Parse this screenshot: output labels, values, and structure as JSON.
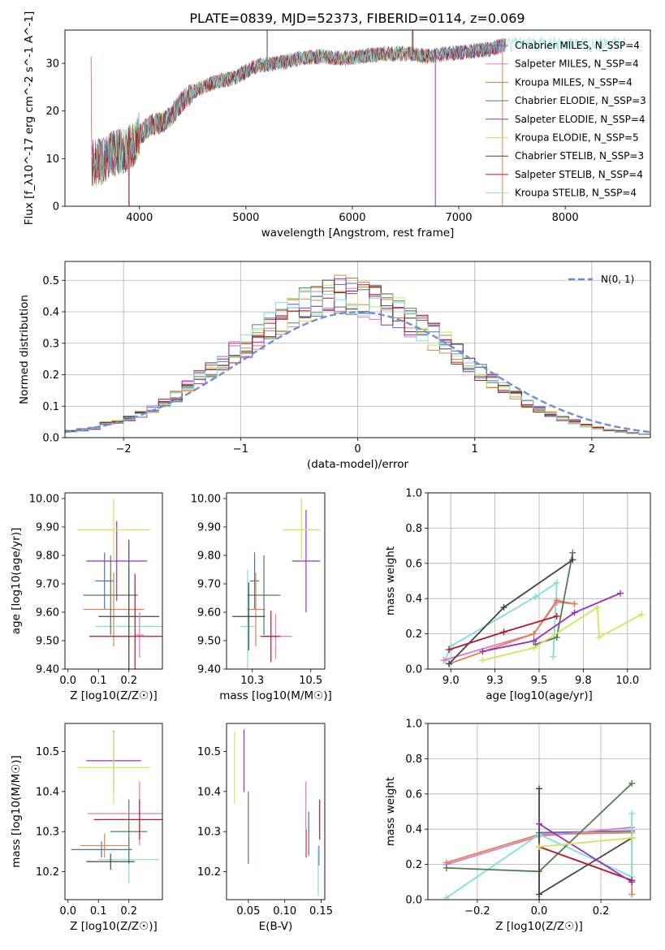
{
  "figure_title": "PLATE=0839, MJD=52373, FIBERID=0114, z=0.069",
  "colors": [
    "#4c72b0",
    "#dd8452",
    "#e377c2",
    "#c87f2e",
    "#4f7f4f",
    "#9b30b8",
    "#d6e35a",
    "#444444",
    "#b2182b",
    "#7fdfe0",
    "#6a8fd8"
  ],
  "chart_data": [
    {
      "id": "spectrum",
      "type": "line",
      "xlabel": "wavelength [Angstrom, rest frame]",
      "ylabel": "Flux [f_λ10^-17 erg cm^-2 s^-1 A^-1]",
      "xlim": [
        3300,
        8800
      ],
      "ylim": [
        0,
        37
      ],
      "xticks": [
        4000,
        5000,
        6000,
        7000,
        8000
      ],
      "yticks": [
        0,
        10,
        20,
        30
      ],
      "grid": false,
      "legend_position": "right",
      "series": [
        {
          "name": "Chabrier MILES, N_SSP=4"
        },
        {
          "name": "Salpeter MILES, N_SSP=4"
        },
        {
          "name": "Kroupa MILES, N_SSP=4"
        },
        {
          "name": "Chabrier ELODIE, N_SSP=3"
        },
        {
          "name": "Salpeter ELODIE, N_SSP=4"
        },
        {
          "name": "Kroupa ELODIE, N_SSP=5"
        },
        {
          "name": "Chabrier STELIB, N_SSP=3"
        },
        {
          "name": "Salpeter STELIB, N_SSP=4"
        },
        {
          "name": "Kroupa STELIB, N_SSP=4"
        }
      ],
      "continuum": {
        "x": [
          3550,
          3650,
          3750,
          3900,
          4000,
          4100,
          4200,
          4300,
          4400,
          4500,
          4700,
          4900,
          5100,
          5300,
          5500,
          5700,
          5900,
          6100,
          6300,
          6500,
          6700,
          6900,
          7100,
          7300,
          7450
        ],
        "y": [
          9,
          9.5,
          11,
          12,
          15,
          17,
          17.5,
          19,
          22,
          24,
          26,
          27,
          29.5,
          30,
          31,
          31.5,
          31,
          31.5,
          32,
          32,
          31.5,
          32,
          32.5,
          33,
          34
        ]
      }
    },
    {
      "id": "residuals",
      "type": "bar",
      "xlabel": "(data-model)/error",
      "ylabel": "Normed distribution",
      "xlim": [
        -2.5,
        2.5
      ],
      "ylim": [
        0,
        0.56
      ],
      "xticks": [
        -2,
        -1,
        0,
        1,
        2
      ],
      "yticks": [
        0.0,
        0.1,
        0.2,
        0.3,
        0.4,
        0.5
      ],
      "grid": true,
      "legend_position": "top-right",
      "legend": "N(0, 1)",
      "bin_width": 0.1,
      "bin_centers": [
        -2.45,
        -2.35,
        -2.25,
        -2.15,
        -2.05,
        -1.95,
        -1.85,
        -1.75,
        -1.65,
        -1.55,
        -1.45,
        -1.35,
        -1.25,
        -1.15,
        -1.05,
        -0.95,
        -0.85,
        -0.75,
        -0.65,
        -0.55,
        -0.45,
        -0.35,
        -0.25,
        -0.15,
        -0.05,
        0.05,
        0.15,
        0.25,
        0.35,
        0.45,
        0.55,
        0.65,
        0.75,
        0.85,
        0.95,
        1.05,
        1.15,
        1.25,
        1.35,
        1.45,
        1.55,
        1.65,
        1.75,
        1.85,
        1.95,
        2.05,
        2.15,
        2.25,
        2.35,
        2.45
      ],
      "base_values": [
        0.02,
        0.025,
        0.03,
        0.045,
        0.05,
        0.06,
        0.075,
        0.09,
        0.11,
        0.13,
        0.16,
        0.19,
        0.21,
        0.24,
        0.27,
        0.29,
        0.32,
        0.35,
        0.38,
        0.4,
        0.43,
        0.44,
        0.46,
        0.46,
        0.45,
        0.44,
        0.43,
        0.41,
        0.39,
        0.37,
        0.35,
        0.32,
        0.3,
        0.27,
        0.24,
        0.21,
        0.18,
        0.16,
        0.13,
        0.11,
        0.09,
        0.075,
        0.06,
        0.05,
        0.04,
        0.03,
        0.025,
        0.02,
        0.015,
        0.01
      ]
    },
    {
      "id": "z-age",
      "type": "scatter",
      "xlabel": "Z [log10(Z/Z☉)]",
      "ylabel": "age [log10(age/yr)]",
      "xlim": [
        -0.01,
        0.31
      ],
      "ylim": [
        9.4,
        10.02
      ],
      "xticks": [
        0.0,
        0.1,
        0.2
      ],
      "yticks": [
        9.4,
        9.5,
        9.6,
        9.7,
        9.8,
        9.9,
        10.0
      ],
      "grid": false,
      "points": [
        {
          "x": 0.12,
          "xerr": 0.03,
          "y": 9.71,
          "yerr": 0.1,
          "color": "#4c72b0"
        },
        {
          "x": 0.15,
          "xerr": 0.1,
          "y": 9.61,
          "yerr": 0.13,
          "color": "#dd8452"
        },
        {
          "x": 0.2,
          "xerr": 0.11,
          "y": 9.55,
          "yerr": 0.2,
          "color": "#7fdfe0"
        },
        {
          "x": 0.14,
          "xerr": 0.09,
          "y": 9.66,
          "yerr": 0.14,
          "color": "#4f7f4f"
        },
        {
          "x": 0.2,
          "xerr": 0.1,
          "y": 9.585,
          "yerr": 0.27,
          "color": "#444444"
        },
        {
          "x": 0.16,
          "xerr": 0.1,
          "y": 9.78,
          "yerr": 0.14,
          "color": "#9b30b8"
        },
        {
          "x": 0.15,
          "xerr": 0.12,
          "y": 9.89,
          "yerr": 0.11,
          "color": "#d6e35a"
        },
        {
          "x": 0.235,
          "xerr": 0.015,
          "y": 9.52,
          "yerr": 0.08,
          "color": "#e377c2"
        },
        {
          "x": 0.22,
          "xerr": 0.15,
          "y": 9.515,
          "yerr": 0.22,
          "color": "#b2182b"
        }
      ]
    },
    {
      "id": "mass-age",
      "type": "scatter",
      "xlabel": "mass [log10(M/M☉)]",
      "ylabel": "",
      "xlim": [
        10.14,
        10.56
      ],
      "ylim": [
        9.4,
        10.02
      ],
      "xticks": [
        10.25,
        10.5
      ],
      "yticks": [
        9.4,
        9.5,
        9.6,
        9.7,
        9.8,
        9.9,
        10.0
      ],
      "grid": false,
      "points": [
        {
          "x": 10.26,
          "xerr": 0.02,
          "y": 9.71,
          "yerr": 0.1,
          "color": "#4c72b0"
        },
        {
          "x": 10.265,
          "xerr": 0.04,
          "y": 9.61,
          "yerr": 0.13,
          "color": "#dd8452"
        },
        {
          "x": 10.23,
          "xerr": 0.03,
          "y": 9.55,
          "yerr": 0.2,
          "color": "#7fdfe0"
        },
        {
          "x": 10.3,
          "xerr": 0.07,
          "y": 9.66,
          "yerr": 0.14,
          "color": "#4f7f4f"
        },
        {
          "x": 10.235,
          "xerr": 0.07,
          "y": 9.585,
          "yerr": 0.12,
          "color": "#444444"
        },
        {
          "x": 10.48,
          "xerr": 0.06,
          "y": 9.78,
          "yerr": 0.18,
          "color": "#9b30b8"
        },
        {
          "x": 10.46,
          "xerr": 0.08,
          "y": 9.89,
          "yerr": 0.11,
          "color": "#d6e35a"
        },
        {
          "x": 10.35,
          "xerr": 0.07,
          "y": 9.515,
          "yerr": 0.08,
          "color": "#e377c2"
        },
        {
          "x": 10.33,
          "xerr": 0.04,
          "y": 9.515,
          "yerr": 0.09,
          "color": "#b2182b"
        }
      ]
    },
    {
      "id": "age-weight",
      "type": "line",
      "xlabel": "age [log10(age/yr)]",
      "ylabel": "mass weight",
      "xlim": [
        8.87,
        10.13
      ],
      "ylim": [
        0,
        1
      ],
      "xticks": [
        9.0,
        9.25,
        9.5,
        9.75,
        10.0
      ],
      "yticks": [
        0.0,
        0.2,
        0.4,
        0.6,
        0.8,
        1.0
      ],
      "grid": true,
      "series": [
        {
          "color": "#7fdfe0",
          "points": [
            [
              8.97,
              0.05
            ],
            [
              9.0,
              0.13
            ],
            [
              9.48,
              0.41
            ],
            [
              9.6,
              0.49
            ],
            [
              9.58,
              0.07
            ]
          ]
        },
        {
          "color": "#e377c2",
          "points": [
            [
              8.96,
              0.05
            ],
            [
              9.47,
              0.2
            ],
            [
              9.6,
              0.38
            ],
            [
              9.7,
              0.37
            ]
          ]
        },
        {
          "color": "#dd8452",
          "points": [
            [
              8.99,
              0.03
            ],
            [
              9.47,
              0.2
            ],
            [
              9.6,
              0.39
            ],
            [
              9.7,
              0.37
            ]
          ]
        },
        {
          "color": "#4f7f4f",
          "points": [
            [
              9.48,
              0.14
            ],
            [
              9.6,
              0.18
            ],
            [
              9.69,
              0.66
            ]
          ]
        },
        {
          "color": "#444444",
          "points": [
            [
              8.99,
              0.03
            ],
            [
              9.3,
              0.35
            ],
            [
              9.69,
              0.62
            ]
          ]
        },
        {
          "color": "#b2182b",
          "points": [
            [
              8.99,
              0.11
            ],
            [
              9.3,
              0.21
            ],
            [
              9.6,
              0.3
            ]
          ]
        },
        {
          "color": "#9b30b8",
          "points": [
            [
              9.18,
              0.1
            ],
            [
              9.47,
              0.16
            ],
            [
              9.7,
              0.32
            ],
            [
              9.96,
              0.43
            ]
          ]
        },
        {
          "color": "#d6e35a",
          "points": [
            [
              9.18,
              0.05
            ],
            [
              9.47,
              0.12
            ],
            [
              9.83,
              0.35
            ],
            [
              9.84,
              0.18
            ],
            [
              10.08,
              0.31
            ]
          ]
        }
      ]
    },
    {
      "id": "z-mass",
      "type": "scatter",
      "xlabel": "Z [log10(Z/Z☉)]",
      "ylabel": "mass [log10(M/M☉)]",
      "xlim": [
        -0.01,
        0.31
      ],
      "ylim": [
        10.13,
        10.57
      ],
      "xticks": [
        0.0,
        0.1,
        0.2
      ],
      "yticks": [
        10.2,
        10.3,
        10.4,
        10.5
      ],
      "grid": false,
      "points": [
        {
          "x": 0.11,
          "xerr": 0.1,
          "y": 10.255,
          "yerr": 0.02,
          "color": "#4c72b0"
        },
        {
          "x": 0.12,
          "xerr": 0.08,
          "y": 10.265,
          "yerr": 0.03,
          "color": "#dd8452"
        },
        {
          "x": 0.2,
          "xerr": 0.1,
          "y": 10.23,
          "yerr": 0.06,
          "color": "#7fdfe0"
        },
        {
          "x": 0.2,
          "xerr": 0.06,
          "y": 10.3,
          "yerr": 0.08,
          "color": "#4f7f4f"
        },
        {
          "x": 0.14,
          "xerr": 0.08,
          "y": 10.225,
          "yerr": 0.02,
          "color": "#444444"
        },
        {
          "x": 0.15,
          "xerr": 0.09,
          "y": 10.477,
          "yerr": 0.075,
          "color": "#9b30b8"
        },
        {
          "x": 0.15,
          "xerr": 0.12,
          "y": 10.46,
          "yerr": 0.09,
          "color": "#d6e35a"
        },
        {
          "x": 0.235,
          "xerr": 0.17,
          "y": 10.345,
          "yerr": 0.08,
          "color": "#e377c2"
        },
        {
          "x": 0.235,
          "xerr": 0.15,
          "y": 10.33,
          "yerr": 0.05,
          "color": "#b2182b"
        }
      ]
    },
    {
      "id": "ebv-mass",
      "type": "scatter",
      "xlabel": "E(B-V)",
      "ylabel": "",
      "xlim": [
        0.02,
        0.155
      ],
      "ylim": [
        10.13,
        10.57
      ],
      "xticks": [
        0.05,
        0.1,
        0.15
      ],
      "yticks": [
        10.2,
        10.3,
        10.4,
        10.5
      ],
      "grid": false,
      "points": [
        {
          "x": 0.147,
          "y": 10.24,
          "yerr": 0.025,
          "color": "#4c72b0"
        },
        {
          "x": 0.13,
          "y": 10.27,
          "yerr": 0.035,
          "color": "#dd8452"
        },
        {
          "x": 0.146,
          "y": 10.2,
          "yerr": 0.06,
          "color": "#7fdfe0"
        },
        {
          "x": 0.05,
          "y": 10.31,
          "yerr": 0.09,
          "color": "#4f7f4f"
        },
        {
          "x": 0.133,
          "y": 10.295,
          "yerr": 0.055,
          "color": "#4c72b0"
        },
        {
          "x": 0.044,
          "y": 10.477,
          "yerr": 0.078,
          "color": "#9b30b8"
        },
        {
          "x": 0.031,
          "y": 10.46,
          "yerr": 0.09,
          "color": "#d6e35a"
        },
        {
          "x": 0.129,
          "y": 10.33,
          "yerr": 0.095,
          "color": "#e377c2"
        },
        {
          "x": 0.148,
          "y": 10.33,
          "yerr": 0.05,
          "color": "#b2182b"
        }
      ]
    },
    {
      "id": "z-weight",
      "type": "line",
      "xlabel": "Z [log10(Z/Z☉)]",
      "ylabel": "mass weight",
      "xlim": [
        -0.36,
        0.36
      ],
      "ylim": [
        0,
        1
      ],
      "xticks": [
        -0.2,
        0.0,
        0.2
      ],
      "yticks": [
        0.0,
        0.2,
        0.4,
        0.6,
        0.8,
        1.0
      ],
      "grid": true,
      "series": [
        {
          "color": "#4c72b0",
          "points": [
            [
              0.0,
              0.0
            ],
            [
              0.0,
              0.38
            ],
            [
              0.3,
              0.39
            ]
          ]
        },
        {
          "color": "#dd8452",
          "points": [
            [
              -0.3,
              0.21
            ],
            [
              0.0,
              0.37
            ],
            [
              0.3,
              0.38
            ],
            [
              0.3,
              0.03
            ]
          ]
        },
        {
          "color": "#e377c2",
          "points": [
            [
              -0.3,
              0.2
            ],
            [
              0.0,
              0.36
            ],
            [
              0.3,
              0.41
            ]
          ]
        },
        {
          "color": "#7fdfe0",
          "points": [
            [
              -0.3,
              0.01
            ],
            [
              0.0,
              0.37
            ],
            [
              0.3,
              0.13
            ],
            [
              0.3,
              0.49
            ]
          ]
        },
        {
          "color": "#4f7f4f",
          "points": [
            [
              -0.3,
              0.18
            ],
            [
              0.0,
              0.16
            ],
            [
              0.3,
              0.66
            ]
          ]
        },
        {
          "color": "#444444",
          "points": [
            [
              0.0,
              0.63
            ],
            [
              0.0,
              0.03
            ],
            [
              0.3,
              0.35
            ]
          ]
        },
        {
          "color": "#b2182b",
          "points": [
            [
              0.0,
              0.3
            ],
            [
              0.3,
              0.11
            ]
          ]
        },
        {
          "color": "#9b30b8",
          "points": [
            [
              0.0,
              0.43
            ],
            [
              0.3,
              0.1
            ]
          ]
        },
        {
          "color": "#d6e35a",
          "points": [
            [
              0.0,
              0.3
            ],
            [
              0.3,
              0.35
            ]
          ]
        }
      ]
    }
  ]
}
